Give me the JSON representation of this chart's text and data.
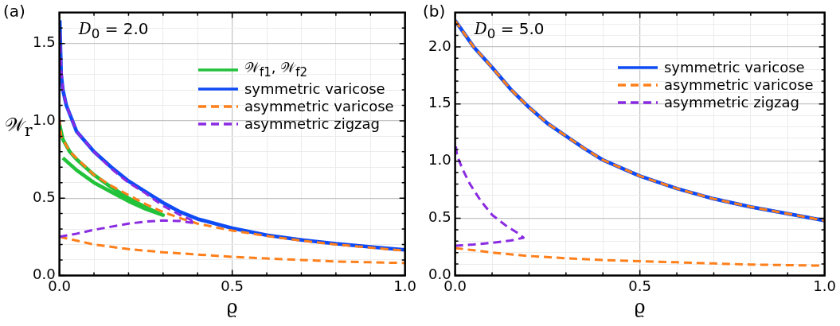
{
  "chart_data": [
    {
      "type": "line",
      "title": "(a)",
      "xlabel": "ϱ",
      "ylabel": "𝒲$_{r}$",
      "annotations": [
        "D$_{0}$ = 2.0"
      ],
      "xlim": [
        0,
        1
      ],
      "ylim": [
        0,
        1.7
      ],
      "xticks": [
        {
          "value": 0,
          "label": "0.0"
        },
        {
          "value": 0.1,
          "label": null
        },
        {
          "value": 0.2,
          "label": null
        },
        {
          "value": 0.3,
          "label": null
        },
        {
          "value": 0.4,
          "label": null
        },
        {
          "value": 0.5,
          "label": "0.5"
        },
        {
          "value": 0.6,
          "label": null
        },
        {
          "value": 0.7,
          "label": null
        },
        {
          "value": 0.8,
          "label": null
        },
        {
          "value": 0.9,
          "label": null
        },
        {
          "value": 1,
          "label": "1.0"
        }
      ],
      "yticks": [
        {
          "value": 0,
          "label": "0.0"
        },
        {
          "value": 0.1,
          "label": null
        },
        {
          "value": 0.2,
          "label": null
        },
        {
          "value": 0.3,
          "label": null
        },
        {
          "value": 0.4,
          "label": null
        },
        {
          "value": 0.5,
          "label": "0.5"
        },
        {
          "value": 0.6,
          "label": null
        },
        {
          "value": 0.7,
          "label": null
        },
        {
          "value": 0.8,
          "label": null
        },
        {
          "value": 0.9,
          "label": null
        },
        {
          "value": 1,
          "label": "1.0"
        },
        {
          "value": 1.1,
          "label": null
        },
        {
          "value": 1.2,
          "label": null
        },
        {
          "value": 1.3,
          "label": null
        },
        {
          "value": 1.4,
          "label": null
        },
        {
          "value": 1.5,
          "label": "1.5"
        },
        {
          "value": 1.6,
          "label": null
        }
      ],
      "grid": true,
      "legend": "top right",
      "marker": "none",
      "series": [
        {
          "name": "𝒲$_{f1}$, 𝒲$_{f2}$",
          "color": "#22c23a",
          "line_style": "solid",
          "x": [
            0,
            0.01,
            0.03,
            0.05,
            0.1,
            0.15,
            0.2,
            0.25,
            0.3,
            0.25,
            0.2,
            0.15,
            0.1,
            0.05,
            0.01
          ],
          "values": [
            0.98,
            0.88,
            0.8,
            0.75,
            0.65,
            0.57,
            0.5,
            0.44,
            0.39,
            0.43,
            0.48,
            0.54,
            0.6,
            0.68,
            0.76
          ]
        },
        {
          "name": "symmetric varicose",
          "color": "#0f4bf5",
          "line_style": "solid",
          "x": [
            0.001,
            0.005,
            0.01,
            0.02,
            0.05,
            0.1,
            0.15,
            0.2,
            0.25,
            0.3,
            0.35,
            0.4,
            0.5,
            0.6,
            0.7,
            0.8,
            0.9,
            1.0
          ],
          "values": [
            1.65,
            1.3,
            1.2,
            1.1,
            0.93,
            0.8,
            0.7,
            0.61,
            0.54,
            0.47,
            0.41,
            0.365,
            0.305,
            0.26,
            0.23,
            0.205,
            0.185,
            0.165
          ]
        },
        {
          "name": "asymmetric varicose",
          "color": "#ff7f1a",
          "line_style": "dashed",
          "x": [
            0,
            0.005,
            0.03,
            0.1,
            0.15,
            0.2,
            0.25,
            0.3,
            0.35,
            0.4,
            0.5,
            0.6,
            0.7,
            0.8,
            0.9,
            1.0
          ],
          "values": [
            1.02,
            0.9,
            0.8,
            0.65,
            0.58,
            0.52,
            0.46,
            0.41,
            0.37,
            0.335,
            0.29,
            0.255,
            0.225,
            0.2,
            0.18,
            0.16
          ]
        },
        {
          "color": "#ff7f1a",
          "line_style": "dashed",
          "x": [
            0,
            0.1,
            0.2,
            0.3,
            0.4,
            0.5,
            0.6,
            0.7,
            0.8,
            0.9,
            1.0
          ],
          "values": [
            0.25,
            0.2,
            0.17,
            0.15,
            0.135,
            0.12,
            0.11,
            0.1,
            0.09,
            0.085,
            0.08
          ]
        },
        {
          "name": "asymmetric zigzag",
          "color": "#8a2be2",
          "line_style": "dashed",
          "x": [
            0,
            0.05,
            0.1,
            0.15,
            0.2,
            0.25,
            0.3,
            0.35,
            0.385,
            0.39,
            0.38,
            0.35,
            0.3,
            0.25,
            0.2,
            0.15,
            0.1,
            0.05,
            0.02,
            0.01,
            0.005,
            0.001
          ],
          "values": [
            0.25,
            0.27,
            0.295,
            0.315,
            0.335,
            0.348,
            0.355,
            0.352,
            0.34,
            0.33,
            0.36,
            0.39,
            0.45,
            0.53,
            0.6,
            0.69,
            0.8,
            0.93,
            1.1,
            1.2,
            1.35,
            1.6
          ]
        }
      ]
    },
    {
      "type": "line",
      "title": "(b)",
      "xlabel": "ϱ",
      "annotations": [
        "D$_{0}$ = 5.0"
      ],
      "xlim": [
        0,
        1
      ],
      "ylim": [
        0,
        2.3
      ],
      "xticks": [
        {
          "value": 0,
          "label": "0.0"
        },
        {
          "value": 0.1,
          "label": null
        },
        {
          "value": 0.2,
          "label": null
        },
        {
          "value": 0.3,
          "label": null
        },
        {
          "value": 0.4,
          "label": null
        },
        {
          "value": 0.5,
          "label": "0.5"
        },
        {
          "value": 0.6,
          "label": null
        },
        {
          "value": 0.7,
          "label": null
        },
        {
          "value": 0.8,
          "label": null
        },
        {
          "value": 0.9,
          "label": null
        },
        {
          "value": 1,
          "label": "1.0"
        }
      ],
      "yticks": [
        {
          "value": 0,
          "label": "0.0"
        },
        {
          "value": 0.1,
          "label": null
        },
        {
          "value": 0.2,
          "label": null
        },
        {
          "value": 0.3,
          "label": null
        },
        {
          "value": 0.4,
          "label": null
        },
        {
          "value": 0.5,
          "label": "0.5"
        },
        {
          "value": 0.6,
          "label": null
        },
        {
          "value": 0.7,
          "label": null
        },
        {
          "value": 0.8,
          "label": null
        },
        {
          "value": 0.9,
          "label": null
        },
        {
          "value": 1,
          "label": "1.0"
        },
        {
          "value": 1.1,
          "label": null
        },
        {
          "value": 1.2,
          "label": null
        },
        {
          "value": 1.3,
          "label": null
        },
        {
          "value": 1.4,
          "label": null
        },
        {
          "value": 1.5,
          "label": "1.5"
        },
        {
          "value": 1.6,
          "label": null
        },
        {
          "value": 1.7,
          "label": null
        },
        {
          "value": 1.8,
          "label": null
        },
        {
          "value": 1.9,
          "label": null
        },
        {
          "value": 2,
          "label": "2.0"
        },
        {
          "value": 2.1,
          "label": null
        },
        {
          "value": 2.2,
          "label": null
        }
      ],
      "grid": true,
      "legend": "top right",
      "marker": "none",
      "series": [
        {
          "name": "symmetric varicose",
          "color": "#0f4bf5",
          "line_style": "solid",
          "x": [
            0,
            0.05,
            0.1,
            0.15,
            0.2,
            0.25,
            0.3,
            0.35,
            0.4,
            0.45,
            0.5,
            0.6,
            0.7,
            0.8,
            0.9,
            1.0
          ],
          "values": [
            2.23,
            2.0,
            1.82,
            1.63,
            1.47,
            1.33,
            1.22,
            1.11,
            1.01,
            0.94,
            0.87,
            0.76,
            0.67,
            0.6,
            0.54,
            0.48
          ]
        },
        {
          "name": "asymmetric varicose",
          "color": "#ff7f1a",
          "line_style": "dashed",
          "x": [
            0,
            0.05,
            0.1,
            0.15,
            0.2,
            0.25,
            0.3,
            0.35,
            0.4,
            0.45,
            0.5,
            0.6,
            0.7,
            0.8,
            0.9,
            1.0
          ],
          "values": [
            2.23,
            2.0,
            1.82,
            1.63,
            1.47,
            1.33,
            1.22,
            1.11,
            1.01,
            0.94,
            0.87,
            0.76,
            0.67,
            0.6,
            0.54,
            0.48
          ]
        },
        {
          "color": "#ff7f1a",
          "line_style": "dashed",
          "x": [
            0,
            0.1,
            0.2,
            0.3,
            0.4,
            0.5,
            0.6,
            0.7,
            0.8,
            0.9,
            1.0
          ],
          "values": [
            0.24,
            0.2,
            0.17,
            0.15,
            0.135,
            0.125,
            0.115,
            0.105,
            0.095,
            0.09,
            0.085
          ]
        },
        {
          "name": "asymmetric zigzag",
          "color": "#8a2be2",
          "line_style": "dashed",
          "x": [
            0,
            0.05,
            0.1,
            0.15,
            0.185,
            0.17,
            0.14,
            0.1,
            0.07,
            0.04,
            0.02,
            0.005,
            0.001
          ],
          "values": [
            0.26,
            0.27,
            0.285,
            0.305,
            0.33,
            0.37,
            0.43,
            0.53,
            0.65,
            0.8,
            0.93,
            1.05,
            1.15
          ]
        }
      ]
    }
  ]
}
